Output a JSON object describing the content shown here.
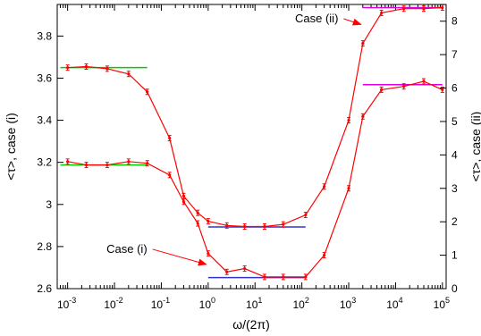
{
  "chart_data": {
    "type": "line",
    "xlabel": "ω/(2π)",
    "ylabel_left": "<τ>, case (i)",
    "ylabel_right": "<τ>, case (ii)",
    "x_scale": "log",
    "xlim": [
      0.0006,
      120000
    ],
    "ylim_left": [
      2.6,
      3.95
    ],
    "ylim_right": [
      0,
      8.5
    ],
    "x_ticks": [
      {
        "value": 0.001,
        "base": "10",
        "exp": "-3"
      },
      {
        "value": 0.01,
        "base": "10",
        "exp": "-2"
      },
      {
        "value": 0.1,
        "base": "10",
        "exp": "-1"
      },
      {
        "value": 1,
        "base": "10",
        "exp": "0"
      },
      {
        "value": 10,
        "base": "10",
        "exp": "1"
      },
      {
        "value": 100,
        "base": "10",
        "exp": "2"
      },
      {
        "value": 1000,
        "base": "10",
        "exp": "3"
      },
      {
        "value": 10000,
        "base": "10",
        "exp": "4"
      },
      {
        "value": 100000,
        "base": "10",
        "exp": "5"
      }
    ],
    "y_ticks_left": [
      "2.6",
      "2.8",
      "3",
      "3.2",
      "3.4",
      "3.6",
      "3.8"
    ],
    "y_ticks_right": [
      "0",
      "1",
      "2",
      "3",
      "4",
      "5",
      "6",
      "7",
      "8"
    ],
    "series": [
      {
        "axis": "left",
        "color": "#ff0000",
        "points": [
          [
            0.001,
            3.65
          ],
          [
            0.0025,
            3.655
          ],
          [
            0.007,
            3.645
          ],
          [
            0.02,
            3.62
          ],
          [
            0.05,
            3.535
          ],
          [
            0.15,
            3.315
          ],
          [
            0.3,
            3.04
          ],
          [
            0.6,
            2.96
          ],
          [
            1.0,
            2.92
          ],
          [
            2.5,
            2.9
          ],
          [
            6.0,
            2.895
          ],
          [
            16.0,
            2.895
          ],
          [
            40.0,
            2.905
          ],
          [
            120.0,
            2.95
          ],
          [
            300.0,
            3.085
          ],
          [
            1000.0,
            3.4
          ],
          [
            2000.0,
            3.765
          ],
          [
            5000.0,
            3.91
          ],
          [
            15000.0,
            3.93
          ],
          [
            40000.0,
            3.93
          ],
          [
            100000.0,
            3.935
          ]
        ]
      },
      {
        "axis": "right",
        "color": "#ff0000",
        "points": [
          [
            0.001,
            3.8
          ],
          [
            0.0025,
            3.7
          ],
          [
            0.007,
            3.7
          ],
          [
            0.02,
            3.8
          ],
          [
            0.05,
            3.75
          ],
          [
            0.15,
            3.4
          ],
          [
            0.3,
            2.6
          ],
          [
            0.6,
            1.95
          ],
          [
            1.0,
            1.05
          ],
          [
            2.5,
            0.5
          ],
          [
            6.0,
            0.6
          ],
          [
            16.0,
            0.35
          ],
          [
            40.0,
            0.35
          ],
          [
            120.0,
            0.35
          ],
          [
            300.0,
            1.0
          ],
          [
            1000.0,
            3.0
          ],
          [
            2000.0,
            5.15
          ],
          [
            5000.0,
            5.95
          ],
          [
            15000.0,
            6.05
          ],
          [
            40000.0,
            6.2
          ],
          [
            100000.0,
            5.95
          ]
        ]
      }
    ],
    "reference_lines": [
      {
        "axis": "left",
        "color": "#00cc00",
        "x": [
          0.0007,
          0.05
        ],
        "y": 3.65
      },
      {
        "axis": "right",
        "color": "#00cc00",
        "x": [
          0.0007,
          0.05
        ],
        "y": 3.7
      },
      {
        "axis": "left",
        "color": "#3333cc",
        "x": [
          1.0,
          120.0
        ],
        "y": 2.893
      },
      {
        "axis": "right",
        "color": "#3333cc",
        "x": [
          1.0,
          120.0
        ],
        "y": 0.33
      },
      {
        "axis": "left",
        "color": "#dd00dd",
        "x": [
          2000.0,
          100000.0
        ],
        "y": 3.935
      },
      {
        "axis": "right",
        "color": "#dd00dd",
        "x": [
          2000.0,
          100000.0
        ],
        "y": 6.1
      }
    ],
    "annotations": [
      {
        "text": "Case (ii)",
        "x": 600,
        "axis": "left",
        "y": 3.865,
        "arrow_to_x": 2000,
        "arrow_to_y": 3.855
      },
      {
        "text": "Case (i)",
        "x": 0.05,
        "axis": "left",
        "y": 2.77,
        "arrow_to_x": 1.0,
        "arrow_to_y": 2.715
      }
    ],
    "grid": false,
    "legend": "none"
  }
}
